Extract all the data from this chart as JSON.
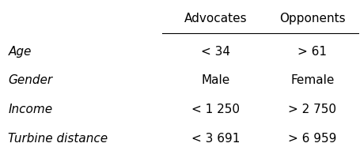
{
  "col_headers": [
    "Advocates",
    "Opponents"
  ],
  "row_labels": [
    "Age",
    "Gender",
    "Income",
    "Turbine distance"
  ],
  "advocates": [
    "< 34",
    "Male",
    "< 1 250",
    "< 3 691"
  ],
  "opponents": [
    "> 61",
    "Female",
    "> 2 750",
    "> 6 959"
  ],
  "bg_color": "#ffffff",
  "text_color": "#000000",
  "header_fontsize": 11,
  "row_label_fontsize": 11,
  "cell_fontsize": 11,
  "fig_width": 4.55,
  "fig_height": 1.86,
  "dpi": 100
}
